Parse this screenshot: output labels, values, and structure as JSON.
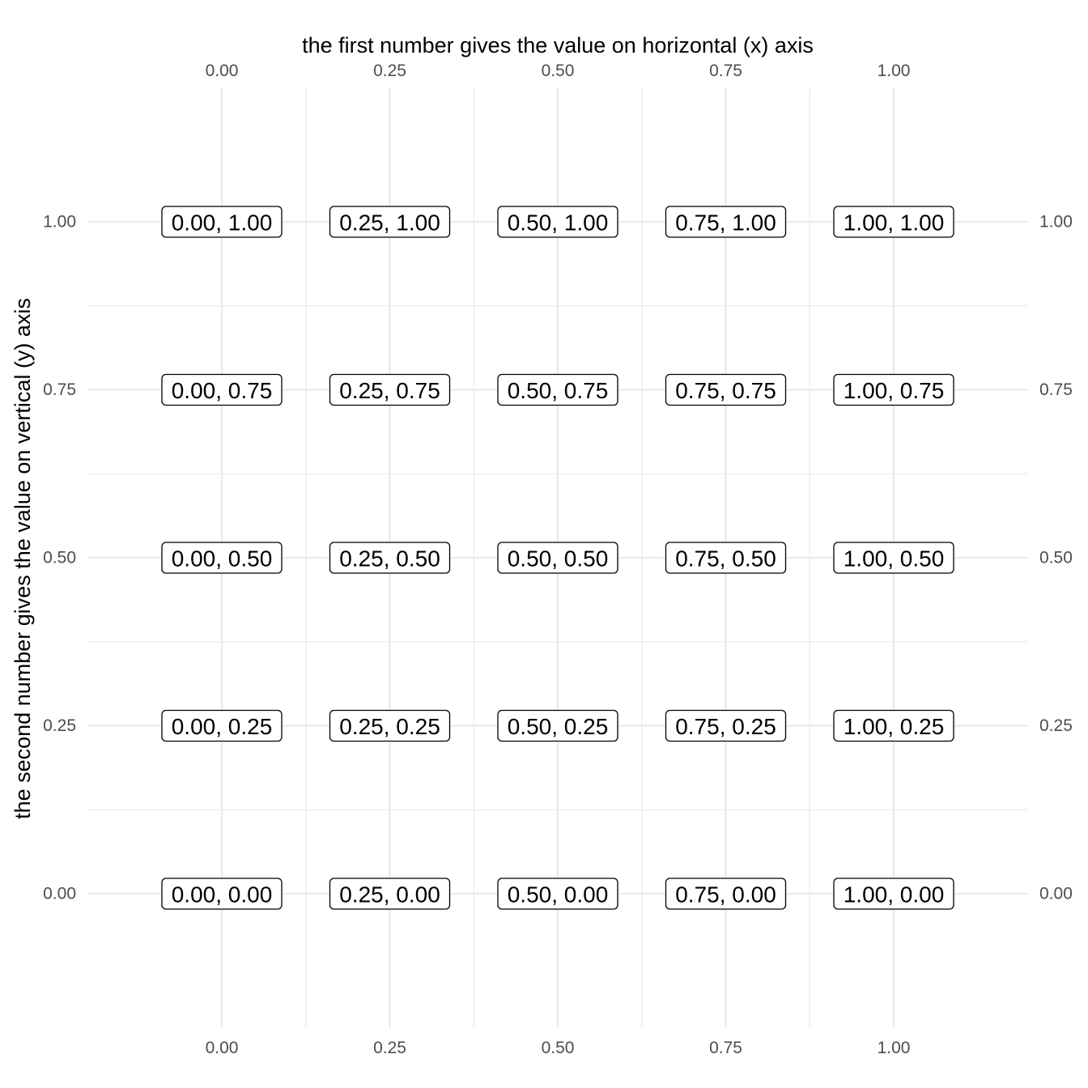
{
  "chart_data": {
    "type": "scatter",
    "xlabel": "the first number gives the value on horizontal (x) axis",
    "ylabel": "the second number gives the value on vertical (y) axis",
    "x_ticks": [
      "0.00",
      "0.25",
      "0.50",
      "0.75",
      "1.00"
    ],
    "y_ticks": [
      "0.00",
      "0.25",
      "0.50",
      "0.75",
      "1.00"
    ],
    "x_tick_values": [
      0,
      0.25,
      0.5,
      0.75,
      1
    ],
    "y_tick_values": [
      0,
      0.25,
      0.5,
      0.75,
      1
    ],
    "xlim": [
      -0.2,
      1.2
    ],
    "ylim": [
      -0.2,
      1.2
    ],
    "grid": true,
    "x_axis_positions": [
      "top",
      "bottom"
    ],
    "y_axis_positions": [
      "left",
      "right"
    ],
    "points": [
      {
        "x": 0,
        "y": 1,
        "label": "0.00, 1.00"
      },
      {
        "x": 0.25,
        "y": 1,
        "label": "0.25, 1.00"
      },
      {
        "x": 0.5,
        "y": 1,
        "label": "0.50, 1.00"
      },
      {
        "x": 0.75,
        "y": 1,
        "label": "0.75, 1.00"
      },
      {
        "x": 1,
        "y": 1,
        "label": "1.00, 1.00"
      },
      {
        "x": 0,
        "y": 0.75,
        "label": "0.00, 0.75"
      },
      {
        "x": 0.25,
        "y": 0.75,
        "label": "0.25, 0.75"
      },
      {
        "x": 0.5,
        "y": 0.75,
        "label": "0.50, 0.75"
      },
      {
        "x": 0.75,
        "y": 0.75,
        "label": "0.75, 0.75"
      },
      {
        "x": 1,
        "y": 0.75,
        "label": "1.00, 0.75"
      },
      {
        "x": 0,
        "y": 0.5,
        "label": "0.00, 0.50"
      },
      {
        "x": 0.25,
        "y": 0.5,
        "label": "0.25, 0.50"
      },
      {
        "x": 0.5,
        "y": 0.5,
        "label": "0.50, 0.50"
      },
      {
        "x": 0.75,
        "y": 0.5,
        "label": "0.75, 0.50"
      },
      {
        "x": 1,
        "y": 0.5,
        "label": "1.00, 0.50"
      },
      {
        "x": 0,
        "y": 0.25,
        "label": "0.00, 0.25"
      },
      {
        "x": 0.25,
        "y": 0.25,
        "label": "0.25, 0.25"
      },
      {
        "x": 0.5,
        "y": 0.25,
        "label": "0.50, 0.25"
      },
      {
        "x": 0.75,
        "y": 0.25,
        "label": "0.75, 0.25"
      },
      {
        "x": 1,
        "y": 0.25,
        "label": "1.00, 0.25"
      },
      {
        "x": 0,
        "y": 0,
        "label": "0.00, 0.00"
      },
      {
        "x": 0.25,
        "y": 0,
        "label": "0.25, 0.00"
      },
      {
        "x": 0.5,
        "y": 0,
        "label": "0.50, 0.00"
      },
      {
        "x": 0.75,
        "y": 0,
        "label": "0.75, 0.00"
      },
      {
        "x": 1,
        "y": 0,
        "label": "1.00, 0.00"
      }
    ]
  }
}
